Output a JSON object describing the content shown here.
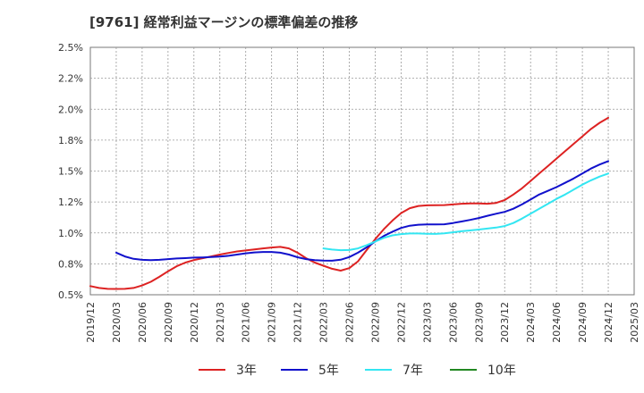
{
  "chart_data": {
    "type": "line",
    "title": "[9761]  経常利益マージンの標準偏差の推移",
    "xlabel": "",
    "ylabel": "",
    "x_ticks": [
      "2019/12",
      "2020/03",
      "2020/06",
      "2020/09",
      "2020/12",
      "2021/03",
      "2021/06",
      "2021/09",
      "2021/12",
      "2022/03",
      "2022/06",
      "2022/09",
      "2022/12",
      "2023/03",
      "2023/06",
      "2023/09",
      "2023/12",
      "2024/03",
      "2024/06",
      "2024/09",
      "2024/12",
      "2025/03"
    ],
    "y_ticks": [
      "0.5%",
      "0.8%",
      "1.0%",
      "1.2%",
      "1.5%",
      "1.8%",
      "2.0%",
      "2.2%",
      "2.5%"
    ],
    "ylim": [
      0.5,
      2.5
    ],
    "grid": true,
    "legend_position": "bottom",
    "series": [
      {
        "name": "3年",
        "color": "#dd2222",
        "points": [
          [
            "2019/12",
            0.57
          ],
          [
            "2020/01",
            0.555
          ],
          [
            "2020/02",
            0.548
          ],
          [
            "2020/03",
            0.547
          ],
          [
            "2020/04",
            0.548
          ],
          [
            "2020/05",
            0.555
          ],
          [
            "2020/06",
            0.575
          ],
          [
            "2020/07",
            0.605
          ],
          [
            "2020/08",
            0.645
          ],
          [
            "2020/09",
            0.69
          ],
          [
            "2020/10",
            0.73
          ],
          [
            "2020/11",
            0.76
          ],
          [
            "2020/12",
            0.78
          ],
          [
            "2021/01",
            0.795
          ],
          [
            "2021/02",
            0.81
          ],
          [
            "2021/03",
            0.825
          ],
          [
            "2021/04",
            0.838
          ],
          [
            "2021/05",
            0.85
          ],
          [
            "2021/06",
            0.858
          ],
          [
            "2021/07",
            0.866
          ],
          [
            "2021/08",
            0.875
          ],
          [
            "2021/09",
            0.882
          ],
          [
            "2021/10",
            0.887
          ],
          [
            "2021/11",
            0.875
          ],
          [
            "2021/12",
            0.84
          ],
          [
            "2022/01",
            0.795
          ],
          [
            "2022/02",
            0.76
          ],
          [
            "2022/03",
            0.735
          ],
          [
            "2022/04",
            0.71
          ],
          [
            "2022/05",
            0.695
          ],
          [
            "2022/06",
            0.715
          ],
          [
            "2022/07",
            0.77
          ],
          [
            "2022/08",
            0.86
          ],
          [
            "2022/09",
            0.95
          ],
          [
            "2022/10",
            1.03
          ],
          [
            "2022/11",
            1.1
          ],
          [
            "2022/12",
            1.16
          ],
          [
            "2023/01",
            1.2
          ],
          [
            "2023/02",
            1.218
          ],
          [
            "2023/03",
            1.223
          ],
          [
            "2023/04",
            1.224
          ],
          [
            "2023/05",
            1.225
          ],
          [
            "2023/06",
            1.23
          ],
          [
            "2023/07",
            1.236
          ],
          [
            "2023/08",
            1.238
          ],
          [
            "2023/09",
            1.238
          ],
          [
            "2023/10",
            1.236
          ],
          [
            "2023/11",
            1.242
          ],
          [
            "2023/12",
            1.265
          ],
          [
            "2024/01",
            1.31
          ],
          [
            "2024/02",
            1.36
          ],
          [
            "2024/03",
            1.42
          ],
          [
            "2024/04",
            1.48
          ],
          [
            "2024/05",
            1.54
          ],
          [
            "2024/06",
            1.6
          ],
          [
            "2024/07",
            1.66
          ],
          [
            "2024/08",
            1.72
          ],
          [
            "2024/09",
            1.78
          ],
          [
            "2024/10",
            1.84
          ],
          [
            "2024/11",
            1.89
          ],
          [
            "2024/12",
            1.93
          ]
        ]
      },
      {
        "name": "5年",
        "color": "#1111cc",
        "points": [
          [
            "2020/03",
            0.84
          ],
          [
            "2020/04",
            0.81
          ],
          [
            "2020/05",
            0.79
          ],
          [
            "2020/06",
            0.782
          ],
          [
            "2020/07",
            0.78
          ],
          [
            "2020/08",
            0.782
          ],
          [
            "2020/09",
            0.788
          ],
          [
            "2020/10",
            0.793
          ],
          [
            "2020/11",
            0.796
          ],
          [
            "2020/12",
            0.8
          ],
          [
            "2021/01",
            0.802
          ],
          [
            "2021/02",
            0.805
          ],
          [
            "2021/03",
            0.808
          ],
          [
            "2021/04",
            0.815
          ],
          [
            "2021/05",
            0.825
          ],
          [
            "2021/06",
            0.835
          ],
          [
            "2021/07",
            0.842
          ],
          [
            "2021/08",
            0.846
          ],
          [
            "2021/09",
            0.846
          ],
          [
            "2021/10",
            0.84
          ],
          [
            "2021/11",
            0.825
          ],
          [
            "2021/12",
            0.803
          ],
          [
            "2022/01",
            0.788
          ],
          [
            "2022/02",
            0.78
          ],
          [
            "2022/03",
            0.776
          ],
          [
            "2022/04",
            0.775
          ],
          [
            "2022/05",
            0.783
          ],
          [
            "2022/06",
            0.805
          ],
          [
            "2022/07",
            0.84
          ],
          [
            "2022/08",
            0.883
          ],
          [
            "2022/09",
            0.93
          ],
          [
            "2022/10",
            0.975
          ],
          [
            "2022/11",
            1.01
          ],
          [
            "2022/12",
            1.04
          ],
          [
            "2023/01",
            1.058
          ],
          [
            "2023/02",
            1.066
          ],
          [
            "2023/03",
            1.068
          ],
          [
            "2023/04",
            1.068
          ],
          [
            "2023/05",
            1.07
          ],
          [
            "2023/06",
            1.08
          ],
          [
            "2023/07",
            1.092
          ],
          [
            "2023/08",
            1.105
          ],
          [
            "2023/09",
            1.12
          ],
          [
            "2023/10",
            1.138
          ],
          [
            "2023/11",
            1.155
          ],
          [
            "2023/12",
            1.17
          ],
          [
            "2024/01",
            1.195
          ],
          [
            "2024/02",
            1.23
          ],
          [
            "2024/03",
            1.27
          ],
          [
            "2024/04",
            1.31
          ],
          [
            "2024/05",
            1.34
          ],
          [
            "2024/06",
            1.37
          ],
          [
            "2024/07",
            1.405
          ],
          [
            "2024/08",
            1.44
          ],
          [
            "2024/09",
            1.48
          ],
          [
            "2024/10",
            1.52
          ],
          [
            "2024/11",
            1.553
          ],
          [
            "2024/12",
            1.58
          ]
        ]
      },
      {
        "name": "7年",
        "color": "#33e6f2",
        "points": [
          [
            "2022/03",
            0.875
          ],
          [
            "2022/04",
            0.865
          ],
          [
            "2022/05",
            0.86
          ],
          [
            "2022/06",
            0.862
          ],
          [
            "2022/07",
            0.875
          ],
          [
            "2022/08",
            0.9
          ],
          [
            "2022/09",
            0.93
          ],
          [
            "2022/10",
            0.96
          ],
          [
            "2022/11",
            0.98
          ],
          [
            "2022/12",
            0.99
          ],
          [
            "2023/01",
            0.995
          ],
          [
            "2023/02",
            0.995
          ],
          [
            "2023/03",
            0.993
          ],
          [
            "2023/04",
            0.992
          ],
          [
            "2023/05",
            0.997
          ],
          [
            "2023/06",
            1.005
          ],
          [
            "2023/07",
            1.013
          ],
          [
            "2023/08",
            1.02
          ],
          [
            "2023/09",
            1.027
          ],
          [
            "2023/10",
            1.035
          ],
          [
            "2023/11",
            1.043
          ],
          [
            "2023/12",
            1.055
          ],
          [
            "2024/01",
            1.08
          ],
          [
            "2024/02",
            1.115
          ],
          [
            "2024/03",
            1.155
          ],
          [
            "2024/04",
            1.195
          ],
          [
            "2024/05",
            1.235
          ],
          [
            "2024/06",
            1.275
          ],
          [
            "2024/07",
            1.31
          ],
          [
            "2024/08",
            1.35
          ],
          [
            "2024/09",
            1.39
          ],
          [
            "2024/10",
            1.425
          ],
          [
            "2024/11",
            1.455
          ],
          [
            "2024/12",
            1.48
          ]
        ]
      },
      {
        "name": "10年",
        "color": "#228822",
        "points": []
      }
    ]
  }
}
